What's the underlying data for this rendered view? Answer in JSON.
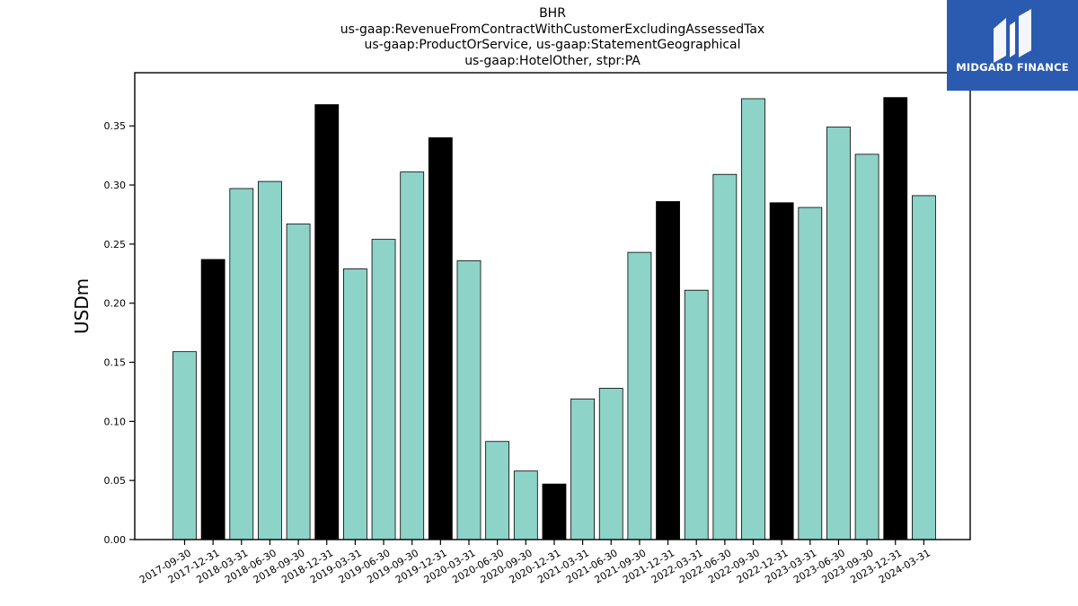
{
  "chart_data": {
    "type": "bar",
    "title": [
      "BHR",
      "us-gaap:RevenueFromContractWithCustomerExcludingAssessedTax",
      "us-gaap:ProductOrService, us-gaap:StatementGeographical",
      "us-gaap:HotelOther, stpr:PA"
    ],
    "xlabel": "",
    "ylabel": "USDm",
    "ylim": [
      0,
      0.395
    ],
    "yticks": [
      "0.00",
      "0.05",
      "0.10",
      "0.15",
      "0.20",
      "0.25",
      "0.30",
      "0.35"
    ],
    "grid": false,
    "categories": [
      "2017-09-30",
      "2017-12-31",
      "2018-03-31",
      "2018-06-30",
      "2018-09-30",
      "2018-12-31",
      "2019-03-31",
      "2019-06-30",
      "2019-09-30",
      "2019-12-31",
      "2020-03-31",
      "2020-06-30",
      "2020-09-30",
      "2020-12-31",
      "2021-03-31",
      "2021-06-30",
      "2021-09-30",
      "2021-12-31",
      "2022-03-31",
      "2022-06-30",
      "2022-09-30",
      "2022-12-31",
      "2023-03-31",
      "2023-06-30",
      "2023-09-30",
      "2023-12-31",
      "2024-03-31"
    ],
    "values": [
      0.159,
      0.237,
      0.297,
      0.303,
      0.267,
      0.368,
      0.229,
      0.254,
      0.311,
      0.34,
      0.236,
      0.083,
      0.058,
      0.047,
      0.119,
      0.128,
      0.243,
      0.286,
      0.211,
      0.309,
      0.373,
      0.285,
      0.281,
      0.349,
      0.326,
      0.374,
      0.291
    ],
    "colors": {
      "default": "#8dd3c7",
      "year_end": "#000000",
      "edge": "#000000"
    }
  },
  "logo": {
    "text": "MIDGARD FINANCE"
  }
}
